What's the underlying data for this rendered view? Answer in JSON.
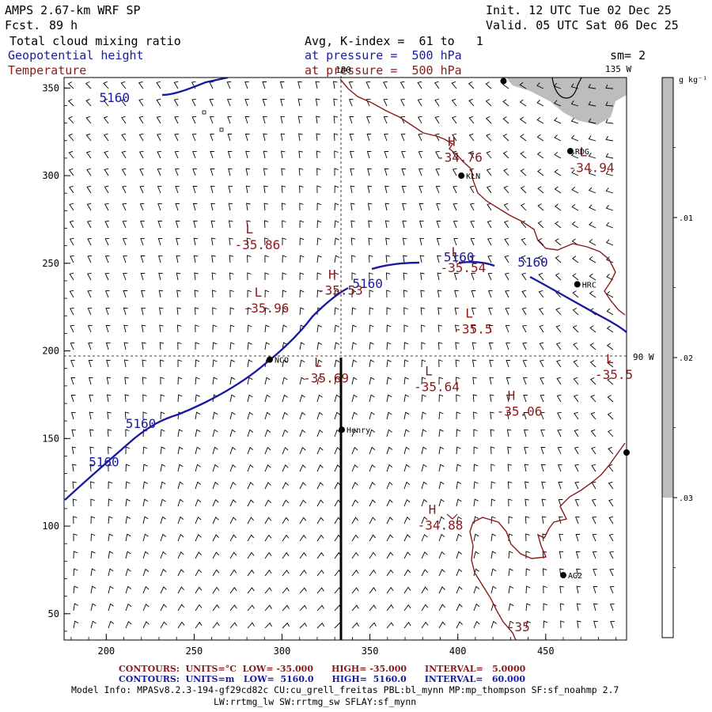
{
  "header": {
    "model": "AMPS 2.67-km WRF SP",
    "forecast_label": "Fcst.",
    "forecast_hours": "89 h",
    "init": "Init. 12 UTC Tue 02 Dec 25",
    "valid": "Valid. 05 UTC Sat 06 Dec 25",
    "field1": "Total cloud mixing ratio",
    "field1_level": "Avg, K-index =  61 to   1",
    "field2": "Geopotential height",
    "field2_level": "at pressure =  500 hPa",
    "field3": "Temperature",
    "field3_level": "at pressure =  500 hPa",
    "smoothing": "sm= 2",
    "meridian_label": "135 W",
    "meridian_90": "90 W",
    "lon_180": "180"
  },
  "colorbar": {
    "unit_label": "g kg⁻¹",
    "ticks": [
      ".03",
      ".02",
      ".01"
    ],
    "levels": [
      0.01,
      0.02,
      0.03
    ]
  },
  "colors": {
    "height": "#1a1aa0",
    "temperature": "#8b1a1a",
    "cloud": "#bdbdbd",
    "wind": "#000000"
  },
  "axes": {
    "x_ticks": [
      "200",
      "250",
      "300",
      "350",
      "400",
      "450"
    ],
    "x_values": [
      200,
      250,
      300,
      350,
      400,
      450
    ],
    "xlim": [
      176,
      496
    ],
    "y_ticks": [
      "350",
      "300",
      "250",
      "200",
      "150",
      "100",
      "50"
    ],
    "y_values": [
      350,
      300,
      250,
      200,
      150,
      100,
      50
    ],
    "ylim": [
      35,
      356
    ]
  },
  "stations": [
    {
      "name": "KLN",
      "x": 402,
      "y": 300
    },
    {
      "name": "RDG",
      "x": 464,
      "y": 314
    },
    {
      "name": "HRC",
      "x": 468,
      "y": 238
    },
    {
      "name": "NCO",
      "x": 293,
      "y": 195
    },
    {
      "name": "Henry",
      "x": 334,
      "y": 155
    },
    {
      "name": "AG2",
      "x": 460,
      "y": 72
    },
    {
      "name": "",
      "x": 426,
      "y": 354
    },
    {
      "name": "",
      "x": 496,
      "y": 142
    }
  ],
  "temperature_extrema": [
    {
      "type": "H",
      "value": "-34.76",
      "x": 388,
      "y": 308
    },
    {
      "type": "L",
      "value": "-34.94",
      "x": 463,
      "y": 302
    },
    {
      "type": "L",
      "value": "-35.86",
      "x": 273,
      "y": 258
    },
    {
      "type": "L",
      "value": "-35.54",
      "x": 390,
      "y": 245
    },
    {
      "type": "H",
      "value": "-35.53",
      "x": 320,
      "y": 232
    },
    {
      "type": "L",
      "value": "-35.96",
      "x": 278,
      "y": 222
    },
    {
      "type": "L",
      "value": "-35.5",
      "x": 398,
      "y": 210
    },
    {
      "type": "L",
      "value": "-35.69",
      "x": 312,
      "y": 182
    },
    {
      "type": "L",
      "value": "-35.64",
      "x": 375,
      "y": 177
    },
    {
      "type": "L",
      "value": "-35.5",
      "x": 478,
      "y": 184
    },
    {
      "type": "H",
      "value": "-35.06",
      "x": 422,
      "y": 163
    },
    {
      "type": "H",
      "value": "-34.88",
      "x": 377,
      "y": 98
    }
  ],
  "contour_labels": {
    "height": [
      {
        "text": "5160",
        "x": 196,
        "y": 342
      },
      {
        "text": "5160",
        "x": 340,
        "y": 236
      },
      {
        "text": "5160",
        "x": 392,
        "y": 251
      },
      {
        "text": "5160",
        "x": 434,
        "y": 248
      },
      {
        "text": "5160",
        "x": 211,
        "y": 156
      },
      {
        "text": "5160",
        "x": 190,
        "y": 134
      }
    ],
    "temperature": [
      {
        "text": "-35",
        "x": 428,
        "y": 40
      }
    ]
  },
  "footer": {
    "temp_line": "CONTOURS:  UNITS=°C  LOW= -35.000      HIGH= -35.000      INTERVAL=   5.0000",
    "height_line": "CONTOURS:  UNITS=m   LOW=  5160.0      HIGH=  5160.0      INTERVAL=   60.000",
    "model_info": "Model Info: MPASv8.2.3-194-gf29cd82c CU:cu_grell_freitas PBL:bl_mynn MP:mp_thompson SF:sf_noahmp 2.7",
    "model_info2": "LW:rrtmg_lw SW:rrtmg_sw SFLAY:sf_mynn"
  }
}
